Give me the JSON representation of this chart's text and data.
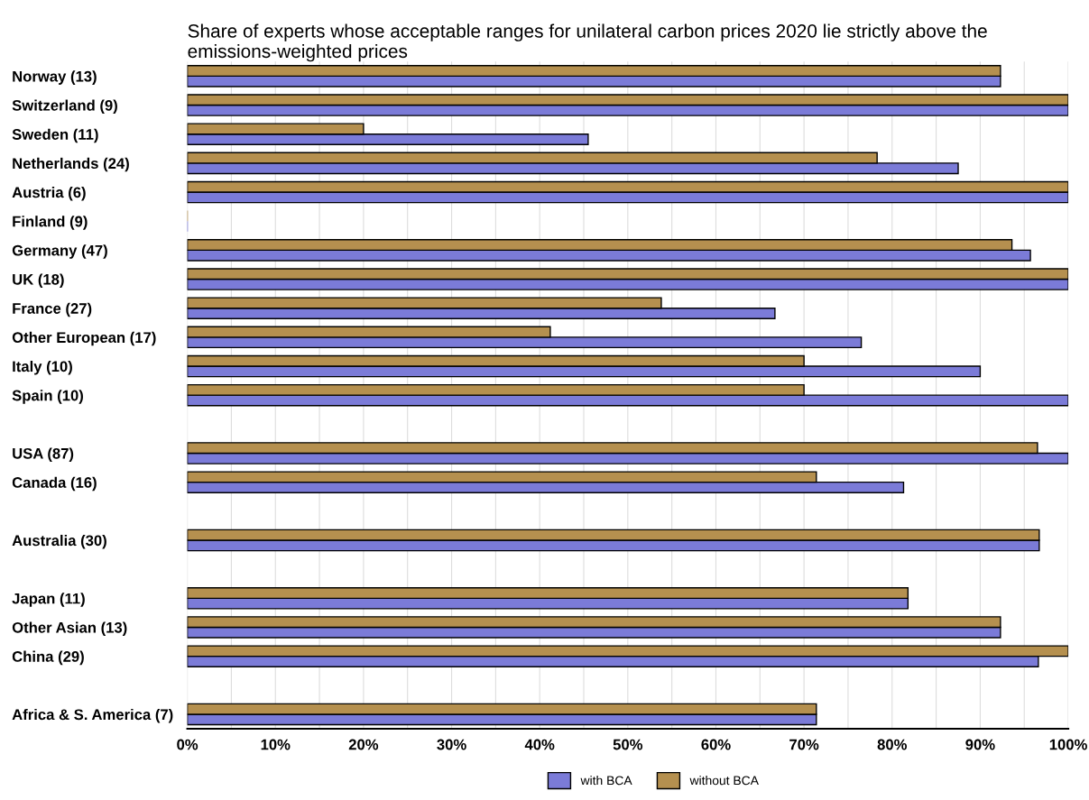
{
  "chart_data": {
    "type": "bar",
    "orientation": "horizontal",
    "title": "Share of experts whose acceptable ranges for unilateral carbon prices 2020 lie strictly above the emissions-weighted prices",
    "categories": [
      "Norway (13)",
      "Switzerland (9)",
      "Sweden (11)",
      "Netherlands (24)",
      "Austria (6)",
      "Finland (9)",
      "Germany (47)",
      "UK (18)",
      "France (27)",
      "Other European (17)",
      "Italy (10)",
      "Spain (10)",
      null,
      "USA (87)",
      "Canada (16)",
      null,
      "Australia (30)",
      null,
      "Japan (11)",
      "Other Asian (13)",
      "China (29)",
      null,
      "Africa & S. America (7)"
    ],
    "series": [
      {
        "name": "with BCA",
        "color": "#7b7bd8",
        "values": [
          92.3,
          100,
          45.5,
          87.5,
          100,
          0,
          95.7,
          100,
          66.7,
          76.5,
          90,
          100,
          null,
          100,
          81.3,
          null,
          96.7,
          null,
          81.8,
          92.3,
          96.6,
          null,
          71.4
        ]
      },
      {
        "name": "without BCA",
        "color": "#b5904f",
        "values": [
          92.3,
          100,
          20,
          78.3,
          100,
          0,
          93.6,
          100,
          53.8,
          41.2,
          70,
          70,
          null,
          96.5,
          71.4,
          null,
          96.7,
          null,
          81.8,
          92.3,
          100,
          null,
          71.4
        ]
      }
    ],
    "xlim": [
      0,
      100
    ],
    "xticks": [
      {
        "value": 0,
        "label": "0%"
      },
      {
        "value": 5,
        "label": null
      },
      {
        "value": 10,
        "label": "10%"
      },
      {
        "value": 15,
        "label": null
      },
      {
        "value": 20,
        "label": "20%"
      },
      {
        "value": 25,
        "label": null
      },
      {
        "value": 30,
        "label": "30%"
      },
      {
        "value": 35,
        "label": null
      },
      {
        "value": 40,
        "label": "40%"
      },
      {
        "value": 45,
        "label": null
      },
      {
        "value": 50,
        "label": "50%"
      },
      {
        "value": 55,
        "label": null
      },
      {
        "value": 60,
        "label": "60%"
      },
      {
        "value": 65,
        "label": null
      },
      {
        "value": 70,
        "label": "70%"
      },
      {
        "value": 75,
        "label": null
      },
      {
        "value": 80,
        "label": "80%"
      },
      {
        "value": 85,
        "label": null
      },
      {
        "value": 90,
        "label": "90%"
      },
      {
        "value": 95,
        "label": null
      },
      {
        "value": 100,
        "label": "100%"
      }
    ],
    "grid": "x",
    "legend": "bottom"
  }
}
